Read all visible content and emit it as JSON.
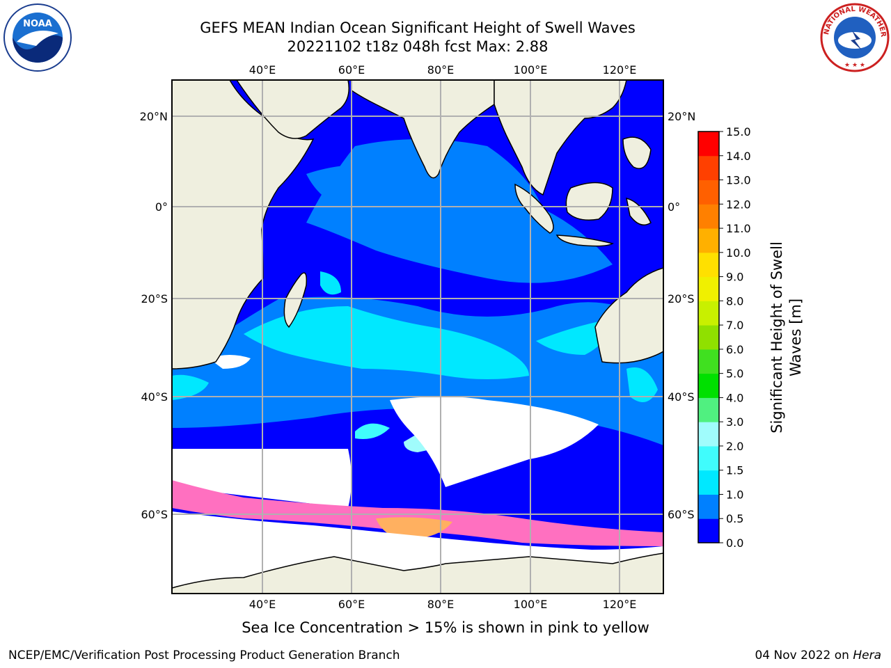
{
  "header": {
    "title_line1": "GEFS MEAN Indian Ocean Significant Height of Swell Waves",
    "title_line2": "20221102 t18z 048h fcst   Max: 2.88"
  },
  "map": {
    "lon_ticks": [
      "40°E",
      "60°E",
      "80°E",
      "100°E",
      "120°E"
    ],
    "lat_ticks": [
      "20°N",
      "0°",
      "20°S",
      "40°S",
      "60°S"
    ],
    "extent": {
      "lon": [
        20,
        129
      ],
      "lat": [
        -86,
        28
      ]
    }
  },
  "colorbar": {
    "label_line1": "Significant Height of Swell",
    "label_line2": "Waves [m]",
    "ticks": [
      "0.0",
      "0.5",
      "1.0",
      "1.5",
      "2.0",
      "3.0",
      "4.0",
      "5.0",
      "6.0",
      "7.0",
      "8.0",
      "9.0",
      "10.0",
      "11.0",
      "12.0",
      "13.0",
      "14.0",
      "15.0"
    ],
    "colors": [
      "#0000ff",
      "#0080ff",
      "#00e8ff",
      "#40fcfc",
      "#a0fcfc",
      "#50f080",
      "#00e000",
      "#40e020",
      "#90e000",
      "#c8f000",
      "#f0f000",
      "#ffe000",
      "#ffb000",
      "#ff8000",
      "#ff6000",
      "#ff4000",
      "#ff0000"
    ]
  },
  "logos": {
    "left": "NOAA",
    "right_ring": "NATIONAL WEATHER SERVICE"
  },
  "caption": "Sea Ice Concentration > 15% is shown in pink to yellow",
  "footer": {
    "left": "NCEP/EMC/Verification Post Processing Product Generation Branch",
    "right_prefix": "04 Nov 2022 on",
    "right_host": "Hera"
  },
  "colors": {
    "land": "#efefdf",
    "ocean_low": "#0000ff",
    "ocean_mid": "#0080ff",
    "ocean_high": "#00e8ff",
    "ice": "#ff70c0"
  }
}
